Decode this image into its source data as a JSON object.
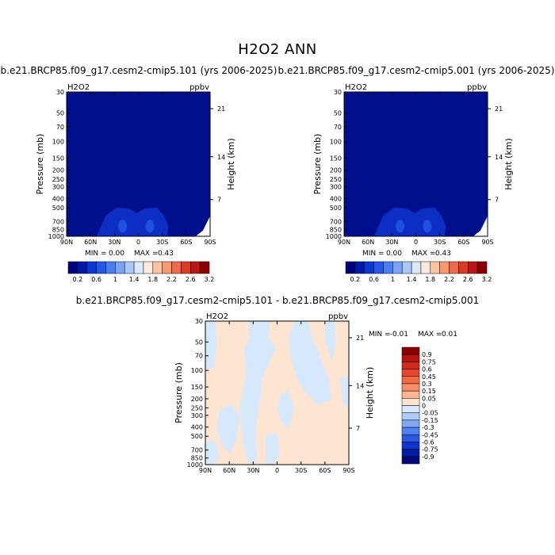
{
  "title": "H2O2 ANN",
  "case_a_title": "b.e21.BRCP85.f09_g17.cesm2-cmip5.101 (yrs 2006-2025)",
  "case_b_title": "b.e21.BRCP85.f09_g17.cesm2-cmip5.001 (yrs 2006-2025)",
  "diff_title": "b.e21.BRCP85.f09_g17.cesm2-cmip5.101 - b.e21.BRCP85.f09_g17.cesm2-cmip5.001",
  "colors": {
    "abs_fill": "#000f8c",
    "abs_blob": "#0d2ec2",
    "abs_core": "#1e50e0",
    "diff_pos": "#fde5d2",
    "diff_neg": "#d6e8fc"
  },
  "chart_data": [
    {
      "type": "heatmap",
      "variable": "H2O2",
      "units": "ppbv",
      "xlabel": "",
      "ylabel": "Pressure (mb)",
      "y2label": "Height (km)",
      "x_ticks": [
        "90N",
        "60N",
        "30N",
        "0",
        "30S",
        "60S",
        "90S"
      ],
      "y_ticks": [
        "30",
        "50",
        "70",
        "100",
        "150",
        "200",
        "250",
        "300",
        "400",
        "500",
        "700",
        "850",
        "1000"
      ],
      "y2_ticks": [
        "21",
        "14",
        "7"
      ],
      "stats": {
        "min_label": "MIN =",
        "min": "0.00",
        "max_label": "MAX =",
        "max": "0.43"
      },
      "colorbar": {
        "labels": [
          "0.2",
          "0.6",
          "1",
          "1.4",
          "1.8",
          "2.2",
          "2.6",
          "3.2"
        ],
        "colors": [
          "#00007a",
          "#0018a8",
          "#0a37cf",
          "#2557e8",
          "#4a7cf2",
          "#7aa3f5",
          "#aac8fa",
          "#dbe9fd",
          "#fdeadd",
          "#fbc5a5",
          "#f79a71",
          "#ef6a4a",
          "#dd3a26",
          "#bb1616",
          "#8b0000"
        ]
      }
    },
    {
      "type": "heatmap",
      "variable": "H2O2",
      "units": "ppbv",
      "xlabel": "",
      "ylabel": "Pressure (mb)",
      "y2label": "Height (km)",
      "x_ticks": [
        "90N",
        "60N",
        "30N",
        "0",
        "30S",
        "60S",
        "90S"
      ],
      "y_ticks": [
        "30",
        "50",
        "70",
        "100",
        "150",
        "200",
        "250",
        "300",
        "400",
        "500",
        "700",
        "850",
        "1000"
      ],
      "y2_ticks": [
        "21",
        "14",
        "7"
      ],
      "stats": {
        "min_label": "MIN =",
        "min": "0.00",
        "max_label": "MAX =",
        "max": "0.43"
      },
      "colorbar": {
        "labels": [
          "0.2",
          "0.6",
          "1",
          "1.4",
          "1.8",
          "2.2",
          "2.6",
          "3.2"
        ],
        "colors": [
          "#00007a",
          "#0018a8",
          "#0a37cf",
          "#2557e8",
          "#4a7cf2",
          "#7aa3f5",
          "#aac8fa",
          "#dbe9fd",
          "#fdeadd",
          "#fbc5a5",
          "#f79a71",
          "#ef6a4a",
          "#dd3a26",
          "#bb1616",
          "#8b0000"
        ]
      }
    },
    {
      "type": "heatmap",
      "variable": "H2O2",
      "units": "ppbv",
      "xlabel": "",
      "ylabel": "Pressure (mb)",
      "y2label": "Height (km)",
      "x_ticks": [
        "90N",
        "60N",
        "30N",
        "0",
        "30S",
        "60S",
        "90S"
      ],
      "y_ticks": [
        "30",
        "50",
        "70",
        "100",
        "150",
        "200",
        "250",
        "300",
        "400",
        "500",
        "700",
        "850",
        "1000"
      ],
      "y2_ticks": [
        "21",
        "14",
        "7"
      ],
      "stats": {
        "min_label": "MIN =",
        "min": "-0.01",
        "max_label": "MAX =",
        "max": "0.01"
      },
      "colorbar": {
        "labels": [
          "0.9",
          "0.75",
          "0.6",
          "0.45",
          "0.3",
          "0.15",
          "0.05",
          "0",
          "-0.05",
          "-0.15",
          "-0.3",
          "-0.45",
          "-0.6",
          "-0.75",
          "-0.9"
        ],
        "colors": [
          "#8b0000",
          "#b5140f",
          "#d42a1e",
          "#e8472e",
          "#f36a45",
          "#f88f66",
          "#fbb591",
          "#fde2cf",
          "#dbe9fc",
          "#aecbfa",
          "#7fa8f5",
          "#4f7ff0",
          "#2a59e6",
          "#0f36cf",
          "#001ba6",
          "#00087a"
        ]
      }
    }
  ]
}
